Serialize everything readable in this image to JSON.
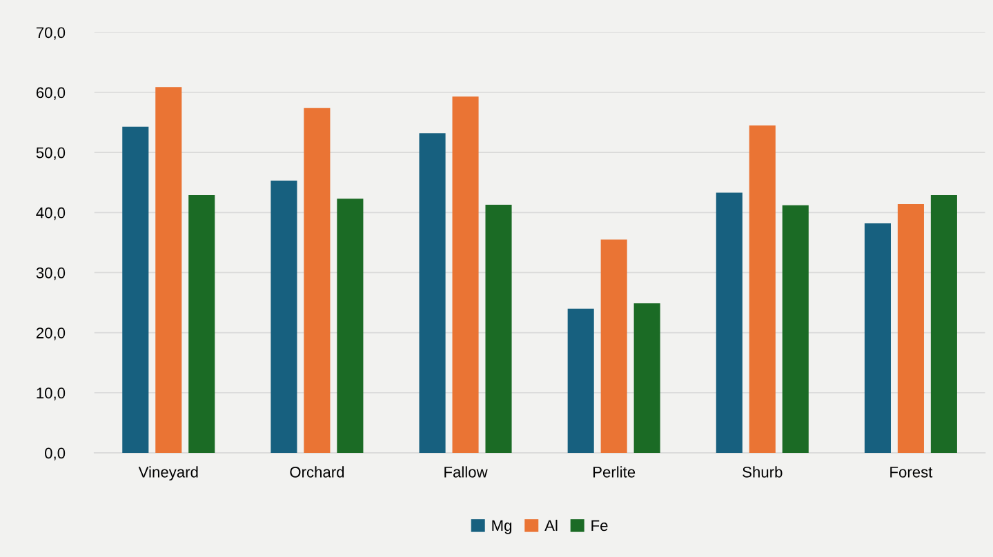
{
  "chart_data": {
    "type": "bar",
    "categories": [
      "Vineyard",
      "Orchard",
      "Fallow",
      "Perlite",
      "Shurb",
      "Forest"
    ],
    "series": [
      {
        "name": "Mg",
        "color": "#17607f",
        "values": [
          54.3,
          45.3,
          53.2,
          24.0,
          43.3,
          38.2
        ]
      },
      {
        "name": "Al",
        "color": "#ea7434",
        "values": [
          60.9,
          57.4,
          59.3,
          35.5,
          54.5,
          41.4
        ]
      },
      {
        "name": "Fe",
        "color": "#1b6b25",
        "values": [
          42.9,
          42.3,
          41.3,
          24.9,
          41.2,
          42.9
        ]
      }
    ],
    "ylim": [
      0,
      70
    ],
    "yticks": [
      {
        "value": 0,
        "label": "0,0"
      },
      {
        "value": 10,
        "label": "10,0"
      },
      {
        "value": 20,
        "label": "20,0"
      },
      {
        "value": 30,
        "label": "30,0"
      },
      {
        "value": 40,
        "label": "40,0"
      },
      {
        "value": 50,
        "label": "50,0"
      },
      {
        "value": 60,
        "label": "60,0"
      },
      {
        "value": 70,
        "label": "70,0"
      }
    ],
    "grid": "y",
    "legend": "bottom"
  }
}
